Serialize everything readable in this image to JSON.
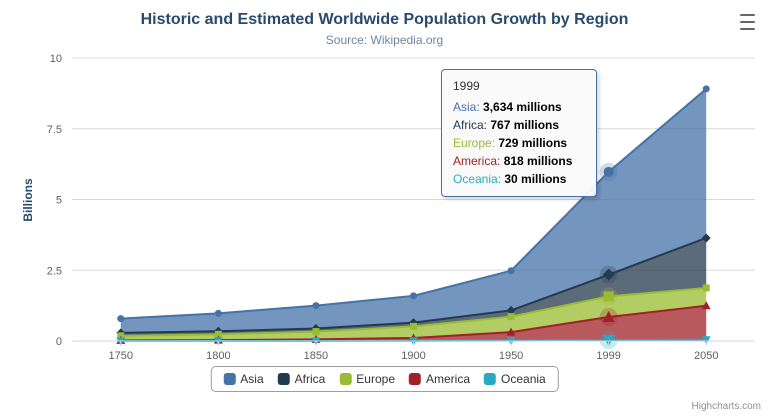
{
  "chart_data": {
    "type": "area",
    "stacked": true,
    "title": "Historic and Estimated Worldwide Population Growth by Region",
    "subtitle": "Source: Wikipedia.org",
    "categories": [
      "1750",
      "1800",
      "1850",
      "1900",
      "1950",
      "1999",
      "2050"
    ],
    "unit": "millions",
    "series": [
      {
        "name": "Asia",
        "color": "#4572A7",
        "marker": "circle",
        "values": [
          502,
          635,
          809,
          947,
          1402,
          3634,
          5268
        ]
      },
      {
        "name": "Africa",
        "color": "#243A4E",
        "marker": "diamond",
        "values": [
          106,
          107,
          111,
          133,
          221,
          767,
          1766
        ]
      },
      {
        "name": "Europe",
        "color": "#9ABC32",
        "marker": "square",
        "values": [
          163,
          203,
          276,
          408,
          547,
          729,
          628
        ]
      },
      {
        "name": "America",
        "color": "#A02128",
        "marker": "triangle",
        "values": [
          18,
          31,
          54,
          105,
          300,
          818,
          1201
        ]
      },
      {
        "name": "Oceania",
        "color": "#27AAC5",
        "marker": "triangle-down",
        "values": [
          2,
          2,
          2,
          3,
          13,
          30,
          46
        ]
      }
    ],
    "xlabel": "",
    "ylabel": "Billions",
    "ylim": [
      0,
      10
    ],
    "yticks": [
      0,
      2.5,
      5,
      7.5,
      10
    ],
    "value_scale_to_billions": 0.001,
    "hover_category_index": 5,
    "grid": true,
    "legend_position": "bottom"
  },
  "tooltip": {
    "title": "1999",
    "rows": [
      {
        "name": "Asia",
        "value": "3,634 millions",
        "color": "#4572A7"
      },
      {
        "name": "Africa",
        "value": "767 millions",
        "color": "#243A4E"
      },
      {
        "name": "Europe",
        "value": "729 millions",
        "color": "#9ABC32"
      },
      {
        "name": "America",
        "value": "818 millions",
        "color": "#A02128"
      },
      {
        "name": "Oceania",
        "value": "30 millions",
        "color": "#27AAC5"
      }
    ],
    "border_color": "#4572A7"
  },
  "colors": {
    "title_text": "#274B6D",
    "grid_line": "#D8D8D8",
    "axis_line": "#CCD6EB",
    "axis_label": "#606060"
  },
  "icons": {
    "context_menu": "hamburger-menu-icon"
  },
  "credits": {
    "label": "Highcharts.com"
  }
}
